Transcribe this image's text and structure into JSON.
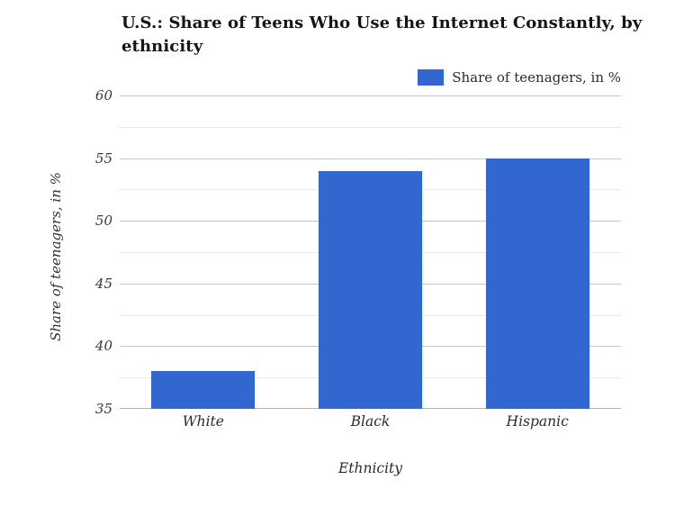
{
  "chart_data": {
    "type": "bar",
    "title": "U.S.: Share of Teens Who Use the Internet Constantly, by ethnicity",
    "categories": [
      "White",
      "Black",
      "Hispanic"
    ],
    "series": [
      {
        "name": "Share of teenagers, in %",
        "values": [
          38,
          54,
          55
        ]
      }
    ],
    "xlabel": "Ethnicity",
    "ylabel": "Share of teenagers, in %",
    "ylim": [
      35,
      60
    ],
    "y_major_ticks": [
      35,
      40,
      45,
      50,
      55,
      60
    ],
    "y_minor_interval": 2.5,
    "grid": true,
    "legend_position": "top-right",
    "bar_color": "#3267d0"
  }
}
